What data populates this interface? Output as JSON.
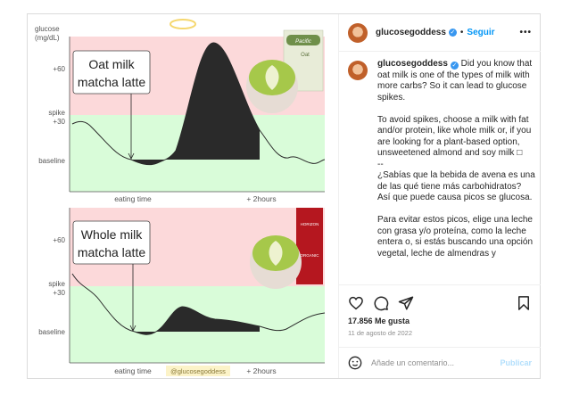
{
  "media": {
    "top_chart": {
      "y_title": [
        "glucose",
        "(mg/dL)"
      ],
      "y_labels": [
        "+60",
        "spike",
        "+30",
        "baseline"
      ],
      "x_labels": [
        "eating time",
        "+ 2hours"
      ],
      "callout": [
        "Oat milk",
        "matcha latte"
      ],
      "carton_text": [
        "Pacific",
        "Oat"
      ]
    },
    "bottom_chart": {
      "y_labels": [
        "+60",
        "spike",
        "+30",
        "baseline"
      ],
      "x_labels": [
        "eating time",
        "+ 2hours"
      ],
      "watermark": "@glucosegoddess",
      "callout": [
        "Whole milk",
        "matcha latte"
      ],
      "carton_text": [
        "HORIZON",
        "ORGANIC"
      ]
    },
    "colors": {
      "spike_zone": "#fcd9da",
      "safe_zone": "#d9fcd9",
      "curve": "#2a2a2a"
    }
  },
  "header": {
    "username": "glucosegoddess",
    "verified": true,
    "follow": "Seguir",
    "more": "•••"
  },
  "caption": {
    "username": "glucosegoddess",
    "text": " Did you know that oat milk is one of the types of milk with more carbs? So it can lead to glucose spikes.\n\nTo avoid spikes, choose a milk with fat and/or protein, like whole milk or, if you are looking for a plant-based option, unsweetened almond and soy milk □\n--\n¿Sabías que la bebida de avena es una de las qué tiene más carbohidratos? Así que puede causa picos se glucosa.\n\nPara evitar estos picos, elige una leche con grasa y/o proteína, como la leche entera o, si estás buscando una opción vegetal, leche de almendras y"
  },
  "actions": {
    "icons": [
      "heart-icon",
      "comment-icon",
      "share-icon",
      "bookmark-icon"
    ]
  },
  "likes": "17.856 Me gusta",
  "date": "11 de agosto de 2022",
  "comment": {
    "placeholder": "Añade un comentario...",
    "publish": "Publicar"
  }
}
